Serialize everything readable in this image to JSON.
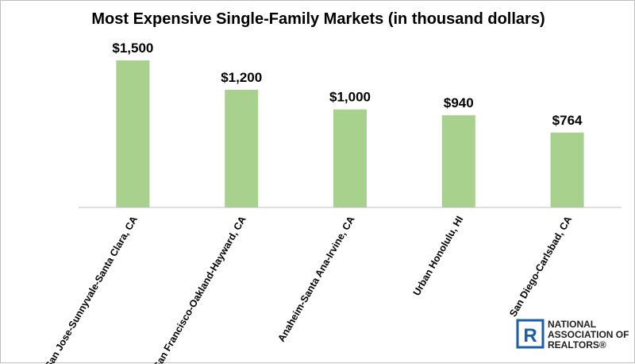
{
  "chart_data": {
    "type": "bar",
    "title": "Most Expensive Single-Family Markets (in thousand dollars)",
    "categories": [
      "San Jose-Sunnyvale-Santa Clara, CA",
      "San Francisco-Oakland-Hayward, CA",
      "Anaheim-Santa Ana-Irvine, CA",
      "Urban Honolulu, HI",
      "San Diego-Carlsbad, CA"
    ],
    "values": [
      1500,
      1200,
      1000,
      940,
      764
    ],
    "value_labels": [
      "$1,500",
      "$1,200",
      "$1,000",
      "$940",
      "$764"
    ],
    "ylim": [
      0,
      1500
    ],
    "bar_color": "#a9d18e",
    "grid": false,
    "legend": "none"
  },
  "logo": {
    "mark": "R",
    "lines": [
      "NATIONAL",
      "ASSOCIATION OF",
      "REALTORS®"
    ],
    "color": "#1c5fa8"
  }
}
